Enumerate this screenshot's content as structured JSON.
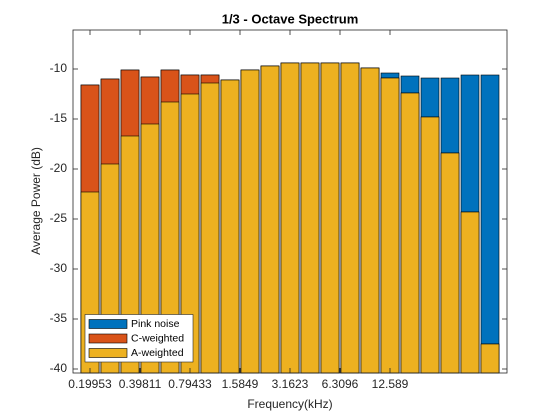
{
  "chart_data": {
    "type": "bar",
    "title": "1/3 - Octave Spectrum",
    "xlabel": "Frequency(kHz)",
    "ylabel": "Average Power (dB)",
    "x": [
      1,
      2,
      3,
      4,
      5,
      6,
      7,
      8,
      9,
      10,
      11,
      12,
      13,
      14,
      15,
      16,
      17,
      18,
      19,
      20,
      21
    ],
    "xlim": [
      0.15,
      21.85
    ],
    "xticks": [
      {
        "value": 1,
        "label": "0.19953"
      },
      {
        "value": 3.5,
        "label": "0.39811"
      },
      {
        "value": 6,
        "label": "0.79433"
      },
      {
        "value": 8.5,
        "label": "1.5849"
      },
      {
        "value": 11,
        "label": "3.1623"
      },
      {
        "value": 13.5,
        "label": "6.3096"
      },
      {
        "value": 16,
        "label": "12.589"
      }
    ],
    "ylim": [
      -40.4,
      -6.1
    ],
    "yticks": [
      -40,
      -35,
      -30,
      -25,
      -20,
      -15,
      -10
    ],
    "grid": false,
    "legend": "lower-left",
    "series": [
      {
        "name": "Pink noise",
        "color": "#0072BD",
        "values": [
          -11.6,
          -11.0,
          -10.1,
          -10.8,
          -10.1,
          -10.6,
          -10.6,
          -11.1,
          -10.1,
          -9.7,
          -9.4,
          -9.4,
          -9.4,
          -9.4,
          -9.9,
          -10.4,
          -10.7,
          -10.9,
          -10.9,
          -10.6,
          -10.6
        ]
      },
      {
        "name": "C-weighted",
        "color": "#D95319",
        "values": [
          -11.6,
          -11.0,
          -10.1,
          -10.8,
          -10.1,
          -10.6,
          -10.6,
          -11.1,
          -10.1,
          -9.7,
          -9.4,
          -9.4,
          -9.4,
          -9.4,
          -9.9,
          -10.9,
          -12.4,
          -14.8,
          -18.4,
          -24.3,
          -37.5
        ]
      },
      {
        "name": "A-weighted",
        "color": "#EDB120",
        "values": [
          -22.3,
          -19.5,
          -16.7,
          -15.5,
          -13.3,
          -12.5,
          -11.4,
          -11.1,
          -10.1,
          -9.7,
          -9.4,
          -9.4,
          -9.4,
          -9.4,
          -9.9,
          -10.9,
          -12.4,
          -14.8,
          -18.4,
          -24.3,
          -37.5
        ]
      }
    ]
  }
}
